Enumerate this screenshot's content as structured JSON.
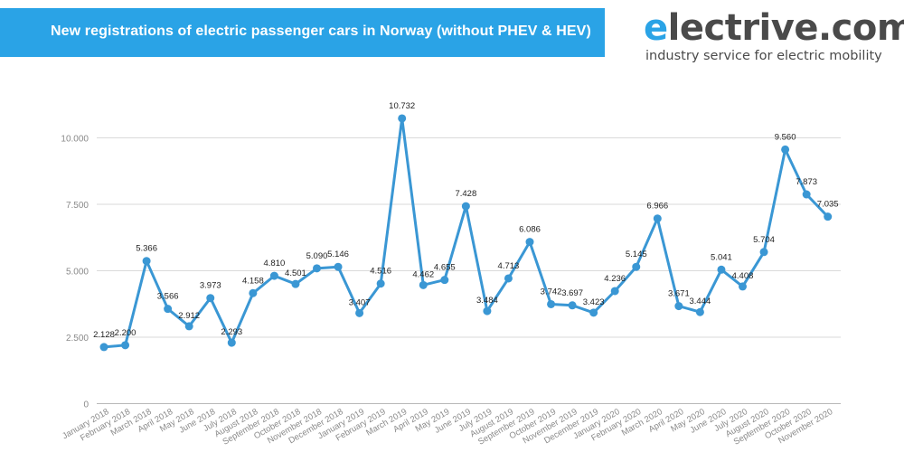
{
  "header": {
    "title": "New registrations of electric passenger cars in Norway (without PHEV & HEV)"
  },
  "brand": {
    "name_first": "e",
    "name_rest": "lectrive.com",
    "tagline": "industry service for electric mobility"
  },
  "colors": {
    "banner": "#2aa3e6",
    "line": "#3a97d4",
    "grid": "#dadada",
    "axis_text": "#8a8a8a",
    "label_text": "#222222"
  },
  "chart_data": {
    "type": "line",
    "title": "New registrations of electric passenger cars in Norway (without PHEV & HEV)",
    "xlabel": "",
    "ylabel": "",
    "ylim": [
      0,
      12000
    ],
    "yticks": [
      0,
      2500,
      5000,
      7500,
      10000
    ],
    "ytick_labels": [
      "0",
      "2.500",
      "5.000",
      "7.500",
      "10.000"
    ],
    "grid": true,
    "legend": "none",
    "categories": [
      "January 2018",
      "February 2018",
      "March 2018",
      "April 2018",
      "May 2018",
      "June 2018",
      "July 2018",
      "August 2018",
      "September 2018",
      "October 2018",
      "November 2018",
      "December 2018",
      "January 2019",
      "February 2019",
      "March 2019",
      "April 2019",
      "May 2019",
      "June 2019",
      "July 2019",
      "August 2019",
      "September 2019",
      "October 2019",
      "November 2019",
      "December 2019",
      "January 2020",
      "February 2020",
      "March 2020",
      "April 2020",
      "May 2020",
      "June 2020",
      "July 2020",
      "August 2020",
      "September 2020",
      "October 2020",
      "November 2020"
    ],
    "values": [
      2128,
      2200,
      5366,
      3566,
      2912,
      3973,
      2293,
      4158,
      4810,
      4501,
      5090,
      5146,
      3407,
      4516,
      10732,
      4462,
      4655,
      7428,
      3484,
      4713,
      6086,
      3742,
      3697,
      3423,
      4236,
      5145,
      6966,
      3671,
      3444,
      5041,
      4408,
      5704,
      9560,
      7873,
      7035
    ],
    "data_labels": [
      "2.128",
      "2.200",
      "5.366",
      "3.566",
      "2.912",
      "3.973",
      "2.293",
      "4.158",
      "4.810",
      "4.501",
      "5.090",
      "5.146",
      "3.407",
      "4.516",
      "10.732",
      "4.462",
      "4.655",
      "7.428",
      "3.484",
      "4.713",
      "6.086",
      "3.742",
      "3.697",
      "3.423",
      "4.236",
      "5.145",
      "6.966",
      "3.671",
      "3.444",
      "5.041",
      "4.408",
      "5.704",
      "9.560",
      "7.873",
      "7.035"
    ]
  }
}
